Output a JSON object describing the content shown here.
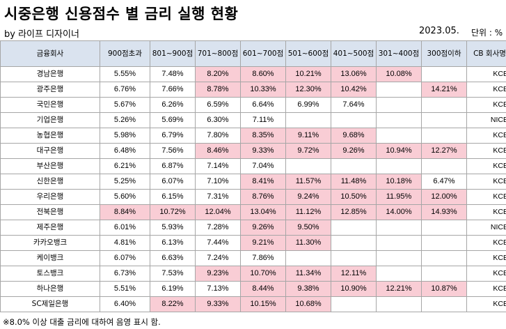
{
  "title": "시중은행 신용점수 별 금리 실행 현황",
  "byline": "by 라이프 디자이너",
  "date": "2023.05.",
  "unit": "단위 : %",
  "table": {
    "columns": [
      "금융회사",
      "900점초과",
      "801~900점",
      "701~800점",
      "601~700점",
      "501~600점",
      "401~500점",
      "301~400점",
      "300점이하",
      "CB 회사명"
    ],
    "rows": [
      {
        "bank": "경남은행",
        "values": [
          "5.55%",
          "7.48%",
          "8.20%",
          "8.60%",
          "10.21%",
          "13.06%",
          "10.08%",
          ""
        ],
        "cb": "KCB"
      },
      {
        "bank": "광주은행",
        "values": [
          "6.76%",
          "7.66%",
          "8.78%",
          "10.33%",
          "12.30%",
          "10.42%",
          "",
          "14.21%"
        ],
        "cb": "KCB"
      },
      {
        "bank": "국민은행",
        "values": [
          "5.67%",
          "6.26%",
          "6.59%",
          "6.64%",
          "6.99%",
          "7.64%",
          "",
          ""
        ],
        "cb": "KCB"
      },
      {
        "bank": "기업은행",
        "values": [
          "5.26%",
          "5.69%",
          "6.30%",
          "7.11%",
          "",
          "",
          "",
          ""
        ],
        "cb": "NICE"
      },
      {
        "bank": "농협은행",
        "values": [
          "5.98%",
          "6.79%",
          "7.80%",
          "8.35%",
          "9.11%",
          "9.68%",
          "",
          ""
        ],
        "cb": "KCB"
      },
      {
        "bank": "대구은행",
        "values": [
          "6.48%",
          "7.56%",
          "8.46%",
          "9.33%",
          "9.72%",
          "9.26%",
          "10.94%",
          "12.27%"
        ],
        "cb": "KCB"
      },
      {
        "bank": "부산은행",
        "values": [
          "6.21%",
          "6.87%",
          "7.14%",
          "7.04%",
          "",
          "",
          "",
          ""
        ],
        "cb": "KCB"
      },
      {
        "bank": "신한은행",
        "values": [
          "5.25%",
          "6.07%",
          "7.10%",
          "8.41%",
          "11.57%",
          "11.48%",
          "10.18%",
          "6.47%"
        ],
        "cb": "KCB"
      },
      {
        "bank": "우리은행",
        "values": [
          "5.60%",
          "6.15%",
          "7.31%",
          "8.76%",
          "9.24%",
          "10.50%",
          "11.95%",
          "12.00%"
        ],
        "cb": "KCB"
      },
      {
        "bank": "전북은행",
        "values": [
          "8.84%",
          "10.72%",
          "12.04%",
          "13.04%",
          "11.12%",
          "12.85%",
          "14.00%",
          "14.93%"
        ],
        "cb": "KCB"
      },
      {
        "bank": "제주은행",
        "values": [
          "6.01%",
          "5.93%",
          "7.28%",
          "9.26%",
          "9.50%",
          "",
          "",
          ""
        ],
        "cb": "NICE"
      },
      {
        "bank": "카카오뱅크",
        "values": [
          "4.81%",
          "6.13%",
          "7.44%",
          "9.21%",
          "11.30%",
          "",
          "",
          ""
        ],
        "cb": "KCB"
      },
      {
        "bank": "케이뱅크",
        "values": [
          "6.07%",
          "6.63%",
          "7.24%",
          "7.86%",
          "",
          "",
          "",
          ""
        ],
        "cb": "KCB"
      },
      {
        "bank": "토스뱅크",
        "values": [
          "6.73%",
          "7.53%",
          "9.23%",
          "10.70%",
          "11.34%",
          "12.11%",
          "",
          ""
        ],
        "cb": "KCB"
      },
      {
        "bank": "하나은행",
        "values": [
          "5.51%",
          "6.19%",
          "7.13%",
          "8.44%",
          "9.38%",
          "10.90%",
          "12.21%",
          "10.87%"
        ],
        "cb": "KCB"
      },
      {
        "bank": "SC제일은행",
        "values": [
          "6.40%",
          "8.22%",
          "9.33%",
          "10.15%",
          "10.68%",
          "",
          "",
          ""
        ],
        "cb": "KCB"
      }
    ],
    "highlight_threshold_percent": 8.0,
    "highlight_color": "#f9cdd5",
    "header_color": "#dae3ef"
  },
  "footnote": "※8.0% 이상 대출 금리에 대하여 음영 표시 함."
}
